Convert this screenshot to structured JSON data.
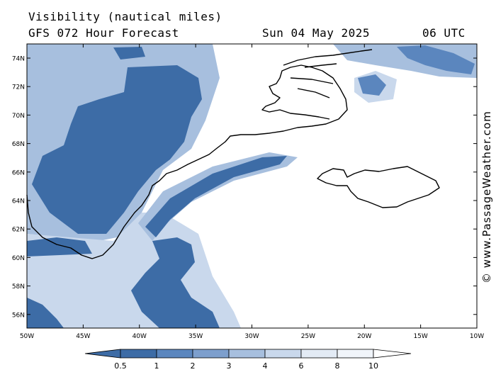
{
  "header": {
    "title": "Visibility (nautical miles)",
    "model": "GFS 072 Hour Forecast",
    "date": "Sun 04 May 2025",
    "time": "06 UTC"
  },
  "watermark": "© www.PassageWeather.com",
  "map": {
    "lat_ticks": [
      "74N",
      "72N",
      "70N",
      "68N",
      "66N",
      "64N",
      "62N",
      "60N",
      "58N",
      "56N"
    ],
    "lon_ticks": [
      "50W",
      "45W",
      "40W",
      "35W",
      "30W",
      "25W",
      "20W",
      "15W",
      "10W"
    ],
    "land_outline_color": "#000000"
  },
  "legend": {
    "labels": [
      "0.5",
      "1",
      "2",
      "3",
      "4",
      "6",
      "8",
      "10"
    ],
    "colors": [
      "#3d6ca6",
      "#5b86be",
      "#7d9fcd",
      "#a7bfde",
      "#c9d8ec",
      "#e3ebf5",
      "#f1f5fa",
      "#ffffff"
    ]
  }
}
